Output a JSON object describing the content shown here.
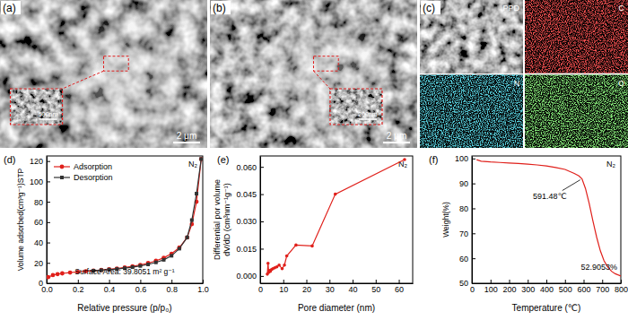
{
  "chart_data": [
    {
      "type": "line",
      "label": "(d)",
      "title": "N₂",
      "x_label": "Relative pressure (p/p₀)",
      "y_label": "Volume adsorbed(cm³g⁻¹)STP",
      "xlim": [
        0,
        1
      ],
      "xticks": [
        {
          "value": 0,
          "label": "0.0"
        },
        0.2,
        0.4,
        0.6,
        0.8,
        {
          "value": 1,
          "label": "1.0"
        }
      ],
      "ylim": [
        0,
        125
      ],
      "yticks": [
        0,
        20,
        40,
        60,
        80,
        100,
        120
      ],
      "legend": "upper left",
      "annotations": [
        {
          "text": "Surface Area: 39.8051 m² g⁻¹"
        }
      ],
      "series": [
        {
          "name": "Adsorption",
          "color": "#e0201b",
          "marker": "circle",
          "x": [
            0.01,
            0.04,
            0.07,
            0.1,
            0.15,
            0.2,
            0.25,
            0.3,
            0.35,
            0.4,
            0.45,
            0.5,
            0.55,
            0.6,
            0.65,
            0.7,
            0.75,
            0.8,
            0.85,
            0.9,
            0.93,
            0.96,
            0.99
          ],
          "values": [
            6,
            8,
            9,
            9.7,
            10.5,
            11.2,
            11.8,
            12.4,
            13,
            13.7,
            14.5,
            15.5,
            16.7,
            18,
            19.8,
            22,
            25,
            29,
            35,
            45,
            58,
            80,
            122
          ]
        },
        {
          "name": "Desorption",
          "color": "#333333",
          "marker": "square",
          "x": [
            0.99,
            0.96,
            0.93,
            0.9,
            0.85,
            0.8,
            0.75,
            0.7,
            0.65,
            0.6,
            0.55,
            0.5,
            0.45,
            0.4,
            0.35,
            0.3
          ],
          "values": [
            122,
            88,
            62,
            45,
            34,
            27,
            23,
            20.5,
            18.5,
            17,
            15.8,
            14.8,
            14,
            13.4,
            12.8,
            12.3
          ]
        }
      ]
    },
    {
      "type": "line",
      "label": "(e)",
      "title": "N₂",
      "x_label": "Pore diameter (nm)",
      "y_label": [
        "Differential por volume",
        "dV/dD (cm³nm⁻¹g⁻¹)"
      ],
      "xlim": [
        0,
        66
      ],
      "xticks": [
        0,
        10,
        20,
        30,
        40,
        50,
        60
      ],
      "ylim": [
        -0.004,
        0.066
      ],
      "yticks": [
        {
          "value": 0,
          "label": "0.000"
        },
        0.015,
        {
          "value": 0.03,
          "label": "0.030"
        },
        0.045,
        {
          "value": 0.06,
          "label": "0.060"
        }
      ],
      "series": [
        {
          "name": "N₂",
          "color": "#e0201b",
          "marker": "circle",
          "x": [
            3.1,
            3.4,
            3.7,
            4.0,
            4.4,
            4.9,
            5.5,
            6.3,
            7.2,
            8.2,
            9.5,
            10.5,
            11.5,
            15.5,
            22.5,
            32.5,
            62.5
          ],
          "values": [
            0.001,
            0.007,
            0.002,
            0.003,
            0.0025,
            0.0035,
            0.004,
            0.0045,
            0.005,
            0.006,
            0.004,
            0.006,
            0.011,
            0.017,
            0.0165,
            0.045,
            0.064
          ]
        }
      ]
    },
    {
      "type": "line",
      "label": "(f)",
      "title": "N₂",
      "x_label": "Temperature (℃)",
      "y_label": "Weight(%)",
      "xlim": [
        0,
        800
      ],
      "xticks": [
        0,
        100,
        200,
        300,
        400,
        500,
        600,
        700,
        800
      ],
      "ylim": [
        50,
        101
      ],
      "yticks": [
        50,
        60,
        70,
        80,
        90,
        100
      ],
      "annotations": [
        {
          "text": "591.48℃",
          "x": 591.48,
          "y": 91.8
        },
        {
          "text": "52.9053%",
          "x": 800,
          "y": 52.9053
        }
      ],
      "series": [
        {
          "name": "N₂",
          "color": "#e0201b",
          "marker": "none",
          "x": [
            25,
            50,
            100,
            150,
            200,
            250,
            300,
            350,
            400,
            450,
            500,
            550,
            575,
            591.48,
            610,
            630,
            650,
            670,
            690,
            710,
            730,
            750,
            770,
            800
          ],
          "values": [
            99.5,
            98.9,
            98.6,
            98.4,
            98.2,
            98,
            97.7,
            97.4,
            97,
            96.4,
            95.6,
            94,
            93,
            91.8,
            88,
            82,
            75,
            68.5,
            63,
            59,
            56.5,
            54.8,
            53.8,
            52.9053
          ]
        }
      ]
    }
  ],
  "images": [
    {
      "label": "(a)",
      "scale_bar": "2 μm",
      "inset_scale_bar": "500nm"
    },
    {
      "label": "(b)",
      "scale_bar": "2 μm",
      "inset_scale_bar": "200nm"
    },
    {
      "label": "(c)",
      "maps": [
        "PPD",
        "C",
        "N",
        "O"
      ]
    }
  ]
}
